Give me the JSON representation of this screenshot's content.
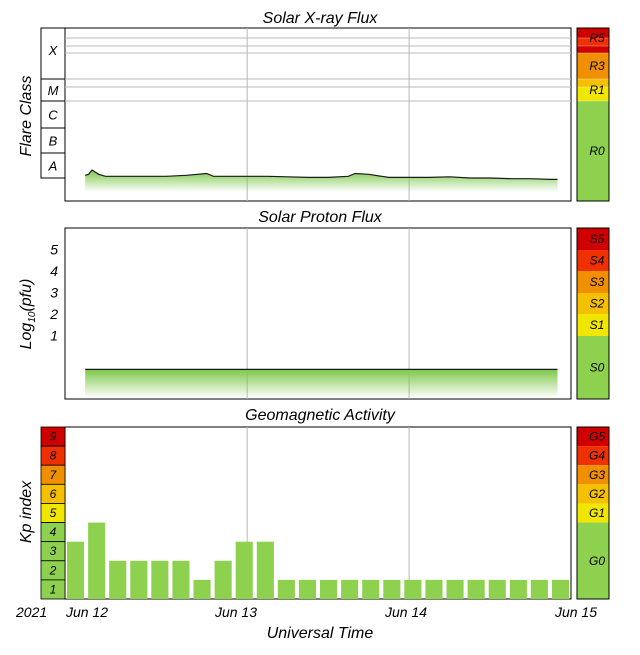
{
  "colors": {
    "r0": "#8ed14e",
    "r1": "#f0e600",
    "r2": "#f5c000",
    "r3": "#f09000",
    "r4": "#ef3000",
    "r5": "#d00000",
    "bar": "#8ed14e"
  },
  "chart_data": [
    {
      "type": "area",
      "title": "Solar X-ray Flux",
      "ylabel": "Flare Class",
      "yscale": "log",
      "ylim": [
        1e-09,
        0.01
      ],
      "flare_classes": [
        "X",
        "M",
        "C",
        "B",
        "A"
      ],
      "scale_levels": [
        "R5",
        "R3",
        "R1",
        "R0"
      ],
      "x": [
        "2021-06-12T00:00",
        "2021-06-12T00:30",
        "2021-06-12T01:00",
        "2021-06-12T02:00",
        "2021-06-12T03:00",
        "2021-06-12T06:00",
        "2021-06-12T09:00",
        "2021-06-12T12:00",
        "2021-06-12T15:00",
        "2021-06-12T18:00",
        "2021-06-12T19:00",
        "2021-06-12T21:00",
        "2021-06-13T00:00",
        "2021-06-13T03:00",
        "2021-06-13T06:00",
        "2021-06-13T09:00",
        "2021-06-13T12:00",
        "2021-06-13T15:00",
        "2021-06-13T16:00",
        "2021-06-13T18:00",
        "2021-06-13T21:00",
        "2021-06-14T00:00",
        "2021-06-14T03:00",
        "2021-06-14T06:00",
        "2021-06-14T09:00",
        "2021-06-14T12:00",
        "2021-06-14T15:00",
        "2021-06-14T18:00",
        "2021-06-14T21:00",
        "2021-06-14T22:00"
      ],
      "values": [
        1.1e-08,
        1.2e-08,
        1.8e-08,
        1.2e-08,
        1e-08,
        1e-08,
        1e-08,
        1e-08,
        1.1e-08,
        1.3e-08,
        1e-08,
        1e-08,
        1e-08,
        1e-08,
        9.5e-09,
        9e-09,
        9e-09,
        1e-08,
        1.3e-08,
        1.2e-08,
        9e-09,
        9e-09,
        9e-09,
        9.5e-09,
        8.5e-09,
        8.5e-09,
        8e-09,
        8e-09,
        7.5e-09,
        7.5e-09
      ]
    },
    {
      "type": "area",
      "title": "Solar Proton Flux",
      "ylabel_main": "Log",
      "ylabel_sub": "10",
      "ylabel_end": "(pfu)",
      "yscale": "log",
      "ylim": [
        0,
        6
      ],
      "yticks": [
        "5",
        "4",
        "3",
        "2",
        "1"
      ],
      "scale_levels": [
        "S5",
        "S4",
        "S3",
        "S2",
        "S1",
        "S0"
      ],
      "x": [
        "2021-06-12T00:00",
        "2021-06-12T12:00",
        "2021-06-13T00:00",
        "2021-06-13T12:00",
        "2021-06-14T00:00",
        "2021-06-14T12:00",
        "2021-06-14T22:00"
      ],
      "values": [
        -0.3,
        -0.3,
        -0.3,
        -0.3,
        -0.3,
        -0.3,
        -0.3
      ]
    },
    {
      "type": "bar",
      "title": "Geomagnetic Activity",
      "ylabel": "Kp index",
      "ylim": [
        0,
        9
      ],
      "kp_levels": [
        "9",
        "8",
        "7",
        "6",
        "5",
        "4",
        "3",
        "2",
        "1"
      ],
      "scale_levels": [
        "G5",
        "G4",
        "G3",
        "G2",
        "G1",
        "G0"
      ],
      "values": [
        3,
        4,
        2,
        2,
        2,
        2,
        1,
        2,
        3,
        3,
        1,
        1,
        1,
        1,
        1,
        1,
        1,
        1,
        1,
        1,
        1,
        1,
        1,
        1
      ]
    }
  ],
  "x_axis": {
    "xlabel": "Universal Time",
    "year_label": "2021",
    "ticks": [
      "Jun 12",
      "Jun 13",
      "Jun 14",
      "Jun 15"
    ]
  }
}
